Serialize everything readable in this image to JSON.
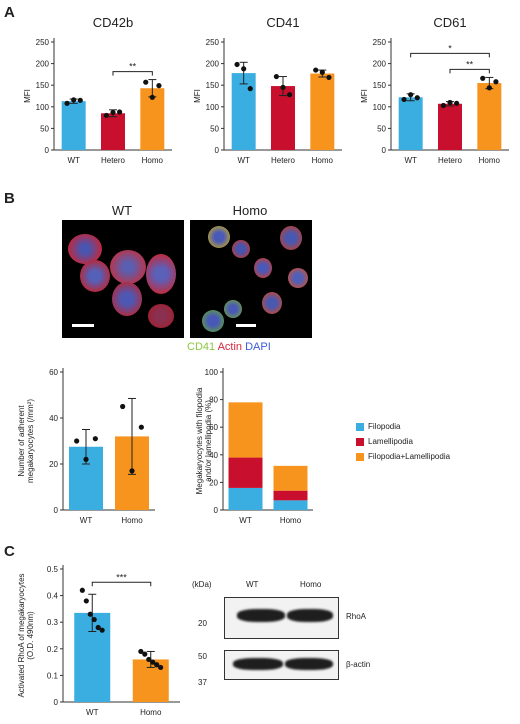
{
  "panels": {
    "a": "A",
    "b": "B",
    "c": "C"
  },
  "colors": {
    "wt": "#3aaee0",
    "hetero": "#c8102e",
    "homo": "#f7941d"
  },
  "microscopy": {
    "left_title": "WT",
    "right_title": "Homo",
    "legend": {
      "cd41": "CD41",
      "actin": "Actin",
      "dapi": "DAPI"
    }
  },
  "western": {
    "kda_label": "(kDa)",
    "lanes": [
      "WT",
      "Homo"
    ],
    "top": {
      "marker": "20",
      "label": "RhoA"
    },
    "bottom": {
      "marker_top": "50",
      "marker_bottom": "37",
      "label": "β-actin"
    }
  },
  "chart_data": [
    {
      "type": "bar",
      "title": "CD42b",
      "xlabel": "",
      "ylabel": "MFI",
      "categories": [
        "WT",
        "Hetero",
        "Homo"
      ],
      "values": [
        113,
        85,
        143
      ],
      "errors": [
        5,
        8,
        20
      ],
      "points": [
        [
          108,
          116,
          115
        ],
        [
          80,
          87,
          88
        ],
        [
          157,
          122,
          149
        ]
      ],
      "ylim": [
        0,
        250
      ],
      "yticks": [
        0,
        50,
        100,
        150,
        200,
        250
      ],
      "significance": [
        {
          "from": 1,
          "to": 2,
          "label": "**"
        }
      ]
    },
    {
      "type": "bar",
      "title": "CD41",
      "xlabel": "",
      "ylabel": "MFI",
      "categories": [
        "WT",
        "Hetero",
        "Homo"
      ],
      "values": [
        178,
        148,
        177
      ],
      "errors": [
        25,
        22,
        8
      ],
      "points": [
        [
          198,
          188,
          142
        ],
        [
          170,
          145,
          128
        ],
        [
          185,
          180,
          168
        ]
      ],
      "ylim": [
        0,
        250
      ],
      "yticks": [
        0,
        50,
        100,
        150,
        200,
        250
      ],
      "significance": []
    },
    {
      "type": "bar",
      "title": "CD61",
      "xlabel": "",
      "ylabel": "MFI",
      "categories": [
        "WT",
        "Hetero",
        "Homo"
      ],
      "values": [
        122,
        107,
        155
      ],
      "errors": [
        8,
        5,
        13
      ],
      "points": [
        [
          117,
          128,
          121
        ],
        [
          103,
          110,
          108
        ],
        [
          166,
          144,
          158
        ]
      ],
      "ylim": [
        0,
        250
      ],
      "yticks": [
        0,
        50,
        100,
        150,
        200,
        250
      ],
      "significance": [
        {
          "from": 0,
          "to": 2,
          "label": "*"
        },
        {
          "from": 1,
          "to": 2,
          "label": "**"
        }
      ]
    },
    {
      "type": "bar",
      "title": "",
      "xlabel": "",
      "ylabel": [
        "Number of adherent",
        "megakaryocytes (/mm²)"
      ],
      "categories": [
        "WT",
        "Homo"
      ],
      "values": [
        27.5,
        32
      ],
      "errors": [
        7.5,
        16.5
      ],
      "points": [
        [
          30,
          22,
          31
        ],
        [
          45,
          17,
          36
        ]
      ],
      "ylim": [
        0,
        60
      ],
      "yticks": [
        0,
        20,
        40,
        60
      ],
      "significance": []
    },
    {
      "type": "bar",
      "stacked": true,
      "title": "",
      "xlabel": "",
      "ylabel": [
        "Megakaryocytes with filopodia",
        "and/or lamellipodia (%)"
      ],
      "categories": [
        "WT",
        "Homo"
      ],
      "series": [
        {
          "name": "Filopodia",
          "values": [
            16,
            7
          ]
        },
        {
          "name": "Lamellipodia",
          "values": [
            22,
            7
          ]
        },
        {
          "name": "Filopodia+Lamellipodia",
          "values": [
            40,
            18
          ]
        }
      ],
      "ylim": [
        0,
        100
      ],
      "yticks": [
        0,
        20,
        40,
        60,
        80,
        100
      ],
      "legend_position": "right"
    },
    {
      "type": "bar",
      "title": "",
      "xlabel": "",
      "ylabel": [
        "Activated RhoA of megakaryocytes",
        "(O.D. 490nm)"
      ],
      "categories": [
        "WT",
        "Homo"
      ],
      "values": [
        0.335,
        0.16
      ],
      "errors": [
        0.07,
        0.03
      ],
      "points": [
        [
          0.42,
          0.38,
          0.33,
          0.31,
          0.28,
          0.27
        ],
        [
          0.19,
          0.18,
          0.16,
          0.15,
          0.14,
          0.13
        ]
      ],
      "ylim": [
        0,
        0.5
      ],
      "yticks": [
        0,
        0.1,
        0.2,
        0.3,
        0.4,
        0.5
      ],
      "significance": [
        {
          "from": 0,
          "to": 1,
          "label": "***"
        }
      ]
    }
  ]
}
